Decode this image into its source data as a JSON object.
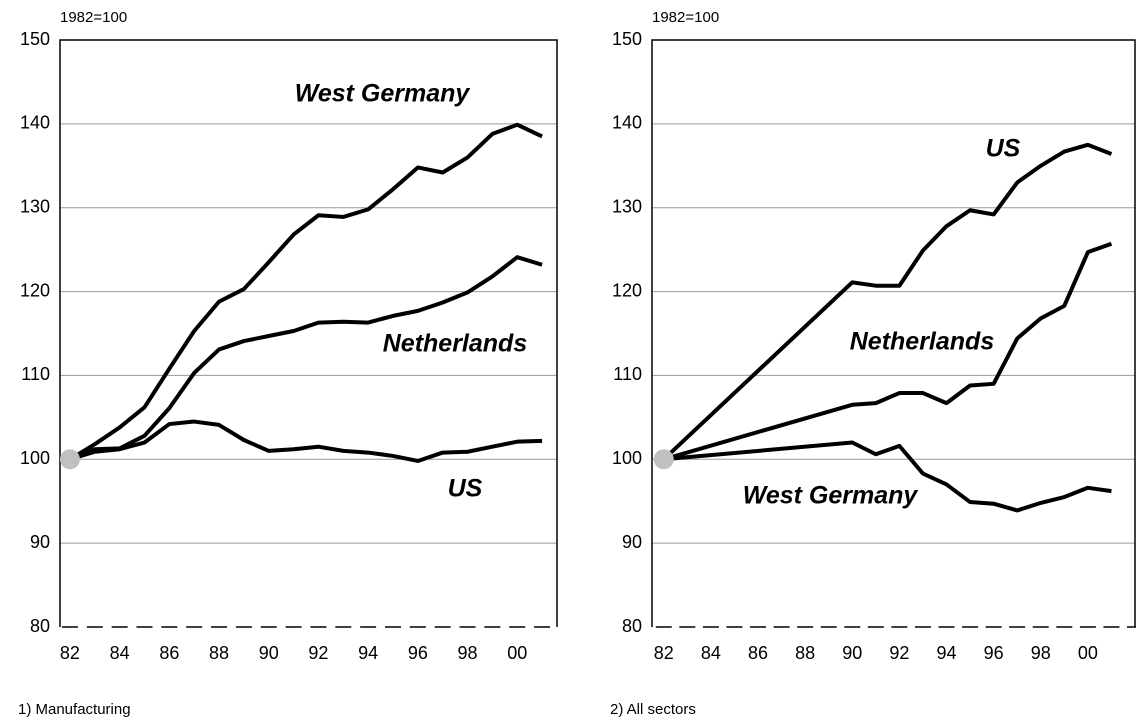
{
  "chart_data": [
    {
      "type": "line",
      "unit_label": "1982=100",
      "footnote": "1)  Manufacturing",
      "xlim": [
        1981.6,
        2001.6
      ],
      "ylim": [
        80,
        150
      ],
      "yticks": [
        80,
        90,
        100,
        110,
        120,
        130,
        140,
        150
      ],
      "xticks": [
        {
          "value": 1982,
          "label": "82"
        },
        {
          "value": 1984,
          "label": "84"
        },
        {
          "value": 1986,
          "label": "86"
        },
        {
          "value": 1988,
          "label": "88"
        },
        {
          "value": 1990,
          "label": "90"
        },
        {
          "value": 1992,
          "label": "92"
        },
        {
          "value": 1994,
          "label": "94"
        },
        {
          "value": 1996,
          "label": "96"
        },
        {
          "value": 1998,
          "label": "98"
        },
        {
          "value": 2000,
          "label": "00"
        }
      ],
      "grid": true,
      "series": [
        {
          "name": "West Germany",
          "color": "#000000",
          "x": [
            1982,
            1983,
            1984,
            1985,
            1986,
            1987,
            1988,
            1989,
            1990,
            1991,
            1992,
            1993,
            1994,
            1995,
            1996,
            1997,
            1998,
            1999,
            2000,
            2001
          ],
          "values": [
            100,
            101.8,
            103.8,
            106.2,
            110.8,
            115.3,
            118.8,
            120.3,
            123.5,
            126.8,
            129.1,
            128.9,
            129.8,
            132.2,
            134.8,
            134.2,
            136,
            138.8,
            139.9,
            138.5
          ]
        },
        {
          "name": "Netherlands",
          "color": "#000000",
          "x": [
            1982,
            1983,
            1984,
            1985,
            1986,
            1987,
            1988,
            1989,
            1990,
            1991,
            1992,
            1993,
            1994,
            1995,
            1996,
            1997,
            1998,
            1999,
            2000,
            2001
          ],
          "values": [
            100,
            101.2,
            101.3,
            102.8,
            106.1,
            110.3,
            113.1,
            114.1,
            114.7,
            115.3,
            116.3,
            116.4,
            116.3,
            117.1,
            117.7,
            118.7,
            119.9,
            121.8,
            124.1,
            123.2
          ]
        },
        {
          "name": "US",
          "color": "#000000",
          "x": [
            1982,
            1983,
            1984,
            1985,
            1986,
            1987,
            1988,
            1989,
            1990,
            1991,
            1992,
            1993,
            1994,
            1995,
            1996,
            1997,
            1998,
            1999,
            2000,
            2001
          ],
          "values": [
            100,
            100.9,
            101.2,
            102,
            104.2,
            104.5,
            104.1,
            102.3,
            101,
            101.2,
            101.5,
            101,
            100.8,
            100.4,
            99.8,
            100.8,
            100.9,
            101.5,
            102.1,
            102.2
          ]
        }
      ]
    },
    {
      "type": "line",
      "unit_label": "1982=100",
      "footnote": "2)  All sectors",
      "xlim": [
        1981.5,
        2002.0
      ],
      "ylim": [
        80,
        150
      ],
      "yticks": [
        80,
        90,
        100,
        110,
        120,
        130,
        140,
        150
      ],
      "xticks": [
        {
          "value": 1982,
          "label": "82"
        },
        {
          "value": 1984,
          "label": "84"
        },
        {
          "value": 1986,
          "label": "86"
        },
        {
          "value": 1988,
          "label": "88"
        },
        {
          "value": 1990,
          "label": "90"
        },
        {
          "value": 1992,
          "label": "92"
        },
        {
          "value": 1994,
          "label": "94"
        },
        {
          "value": 1996,
          "label": "96"
        },
        {
          "value": 1998,
          "label": "98"
        },
        {
          "value": 2000,
          "label": "00"
        }
      ],
      "grid": true,
      "series": [
        {
          "name": "US",
          "color": "#000000",
          "x": [
            1982,
            1990,
            1991,
            1992,
            1993,
            1994,
            1995,
            1996,
            1997,
            1998,
            1999,
            2000,
            2001
          ],
          "values": [
            100,
            121.1,
            120.7,
            120.7,
            124.9,
            127.8,
            129.7,
            129.2,
            133,
            135,
            136.7,
            137.5,
            136.4
          ]
        },
        {
          "name": "Netherlands",
          "color": "#000000",
          "x": [
            1982,
            1990,
            1991,
            1992,
            1993,
            1994,
            1995,
            1996,
            1997,
            1998,
            1999,
            2000,
            2001
          ],
          "values": [
            100,
            106.5,
            106.7,
            107.9,
            107.9,
            106.7,
            108.8,
            109,
            114.4,
            116.8,
            118.3,
            124.7,
            125.7
          ]
        },
        {
          "name": "West Germany",
          "color": "#000000",
          "x": [
            1982,
            1990,
            1991,
            1992,
            1993,
            1994,
            1995,
            1996,
            1997,
            1998,
            1999,
            2000,
            2001
          ],
          "values": [
            100,
            102,
            100.6,
            101.6,
            98.3,
            97,
            94.9,
            94.7,
            93.9,
            94.8,
            95.5,
            96.6,
            96.2
          ]
        }
      ]
    }
  ]
}
